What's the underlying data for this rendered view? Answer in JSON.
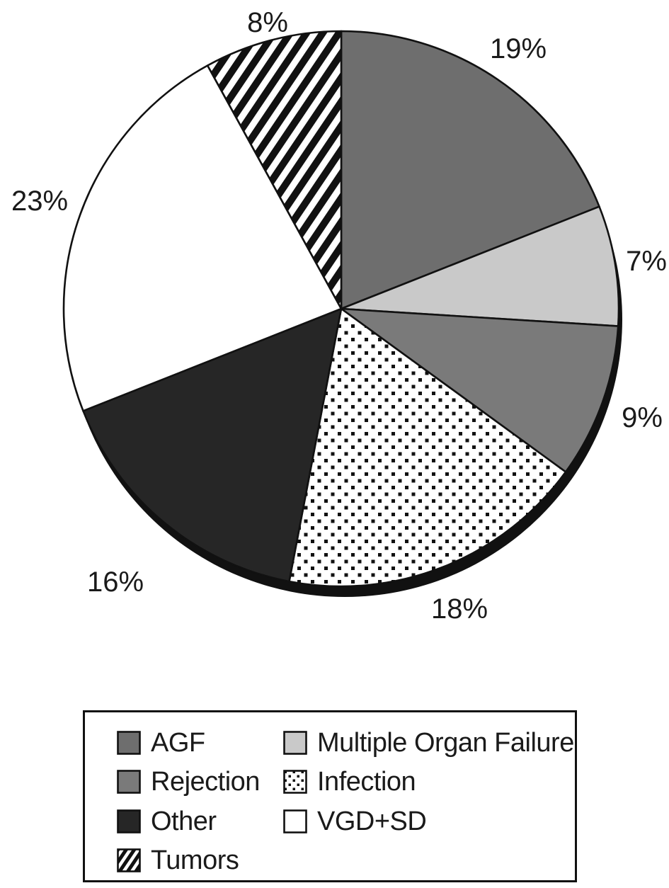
{
  "chart_data": {
    "type": "pie",
    "title": "",
    "start_angle_deg": 0,
    "direction": "clockwise",
    "units": "percent",
    "slices": [
      {
        "label": "AGF",
        "value": 19,
        "display": "19%",
        "fill": "#6e6e6e"
      },
      {
        "label": "Multiple Organ Failure",
        "value": 7,
        "display": "7%",
        "fill": "#c9c9c9"
      },
      {
        "label": "Rejection",
        "value": 9,
        "display": "9%",
        "fill": "#7a7a7a"
      },
      {
        "label": "Infection",
        "value": 18,
        "display": "18%",
        "fill": "pattern:dots"
      },
      {
        "label": "Other",
        "value": 16,
        "display": "16%",
        "fill": "#262626"
      },
      {
        "label": "VGD+SD",
        "value": 23,
        "display": "23%",
        "fill": "#ffffff"
      },
      {
        "label": "Tumors",
        "value": 8,
        "display": "8%",
        "fill": "pattern:stripes"
      }
    ],
    "legend": {
      "position": "bottom",
      "columns": [
        [
          "AGF",
          "Rejection",
          "Other",
          "Tumors"
        ],
        [
          "Multiple Organ Failure",
          "Infection",
          "VGD+SD"
        ]
      ]
    },
    "outline_color": "#111111",
    "shadow_color": "#111111",
    "label_color": "#1a1a1a",
    "background": "#ffffff",
    "grid": false
  }
}
